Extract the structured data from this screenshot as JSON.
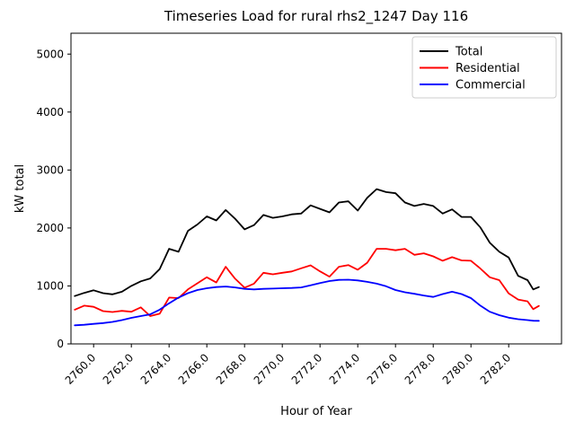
{
  "chart_data": {
    "type": "line",
    "title": "Timeseries Load for rural rhs2_1247  Day 116",
    "xlabel": "Hour of Year",
    "ylabel": "kW total",
    "xlim": [
      2758.8,
      2784.8
    ],
    "ylim": [
      0,
      5360
    ],
    "grid": false,
    "legend_position": "upper right",
    "xticks": {
      "values": [
        2760,
        2762,
        2764,
        2766,
        2768,
        2770,
        2772,
        2774,
        2776,
        2778,
        2780,
        2782
      ],
      "labels": [
        "2760.0",
        "2762.0",
        "2764.0",
        "2766.0",
        "2768.0",
        "2770.0",
        "2772.0",
        "2774.0",
        "2776.0",
        "2778.0",
        "2780.0",
        "2782.0"
      ]
    },
    "yticks": {
      "values": [
        0,
        1000,
        2000,
        3000,
        4000,
        5000
      ],
      "labels": [
        "0",
        "1000",
        "2000",
        "3000",
        "4000",
        "5000"
      ]
    },
    "x": [
      2759,
      2759.5,
      2760,
      2760.5,
      2761,
      2761.5,
      2762,
      2762.5,
      2763,
      2763.5,
      2764,
      2764.5,
      2765,
      2765.5,
      2766,
      2766.5,
      2767,
      2767.5,
      2768,
      2768.5,
      2769,
      2769.5,
      2770,
      2770.5,
      2771,
      2771.5,
      2772,
      2772.5,
      2773,
      2773.5,
      2774,
      2774.5,
      2775,
      2775.5,
      2776,
      2776.5,
      2777,
      2777.5,
      2778,
      2778.5,
      2779,
      2779.5,
      2780,
      2780.5,
      2781,
      2781.5,
      2782,
      2782.5,
      2783,
      2783.3,
      2783.6
    ],
    "series": [
      {
        "name": "Total",
        "color": "#000000",
        "values": [
          825,
          880,
          925,
          875,
          855,
          900,
          1000,
          1080,
          1130,
          1290,
          1640,
          1590,
          1950,
          2060,
          2200,
          2130,
          2310,
          2160,
          1976,
          2050,
          2225,
          2175,
          2200,
          2235,
          2250,
          2390,
          2330,
          2270,
          2440,
          2460,
          2300,
          2520,
          2670,
          2620,
          2600,
          2440,
          2380,
          2415,
          2380,
          2250,
          2320,
          2190,
          2190,
          2010,
          1744,
          1590,
          1490,
          1175,
          1100,
          940,
          980
        ]
      },
      {
        "name": "Residential",
        "color": "#ff0000",
        "values": [
          590,
          660,
          640,
          565,
          550,
          570,
          555,
          630,
          480,
          520,
          800,
          790,
          940,
          1046,
          1150,
          1060,
          1330,
          1124,
          969,
          1040,
          1227,
          1200,
          1227,
          1250,
          1304,
          1356,
          1252,
          1160,
          1330,
          1360,
          1279,
          1400,
          1640,
          1640,
          1615,
          1640,
          1537,
          1563,
          1511,
          1434,
          1496,
          1440,
          1434,
          1300,
          1150,
          1100,
          870,
          765,
          735,
          600,
          655
        ]
      },
      {
        "name": "Commercial",
        "color": "#0000ff",
        "values": [
          320,
          330,
          345,
          360,
          380,
          410,
          450,
          480,
          510,
          590,
          700,
          800,
          875,
          930,
          960,
          980,
          990,
          975,
          950,
          940,
          950,
          955,
          960,
          965,
          975,
          1010,
          1050,
          1085,
          1105,
          1108,
          1095,
          1070,
          1040,
          995,
          930,
          890,
          865,
          835,
          810,
          860,
          900,
          860,
          790,
          660,
          555,
          495,
          452,
          426,
          410,
          400,
          398
        ]
      }
    ]
  }
}
